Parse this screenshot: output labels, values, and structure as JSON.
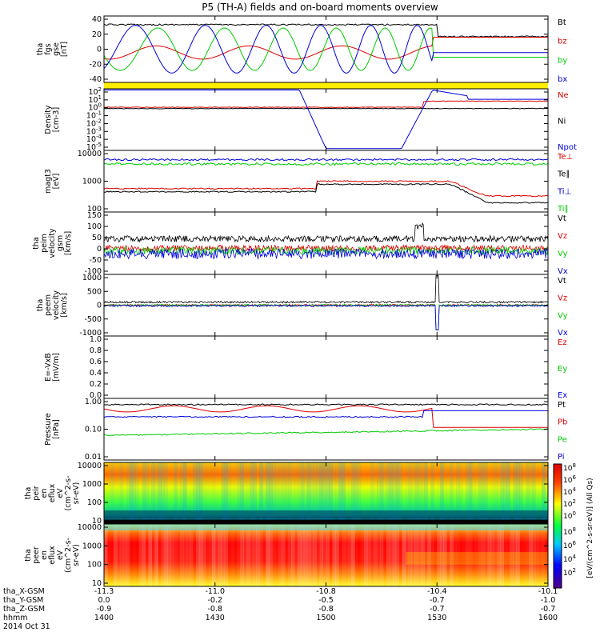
{
  "title": "P5 (TH-A) fields and on-board moments overview",
  "colors": {
    "black": "#000000",
    "red": "#dd0000",
    "green": "#00cc00",
    "blue": "#0000dd",
    "yellow": "#ffee00"
  },
  "chart_data": [
    {
      "id": "fgs",
      "type": "line",
      "ylabel": [
        "tha",
        "fgs",
        "gse",
        "[nT]"
      ],
      "yticks": [
        "40",
        "20",
        "0",
        "-20",
        "-40"
      ],
      "series": [
        {
          "name": "Bt",
          "color": "#000000"
        },
        {
          "name": "bz",
          "color": "#dd0000"
        },
        {
          "name": "by",
          "color": "#00cc00"
        },
        {
          "name": "bx",
          "color": "#0000dd"
        }
      ]
    },
    {
      "id": "density",
      "type": "line",
      "ylabel": [
        "Density",
        "[cm-3]"
      ],
      "yticks": [
        "10^2",
        "10^1",
        "10^0",
        "10^-1",
        "10^-2",
        "10^-3",
        "10^-4",
        "10^-5"
      ],
      "series": [
        {
          "name": "Ne",
          "color": "#dd0000"
        },
        {
          "name": "Ni",
          "color": "#000000"
        },
        {
          "name": "Npot",
          "color": "#0000dd"
        }
      ]
    },
    {
      "id": "temp",
      "type": "line",
      "ylabel": [
        "magt3",
        "[eV]"
      ],
      "yticks": [
        "10000",
        "1000",
        "100"
      ],
      "series": [
        {
          "name": "Te⊥",
          "color": "#dd0000"
        },
        {
          "name": "Te∥",
          "color": "#000000"
        },
        {
          "name": "Ti⊥",
          "color": "#0000dd"
        },
        {
          "name": "Ti∥",
          "color": "#00cc00"
        }
      ]
    },
    {
      "id": "peim",
      "type": "line",
      "ylabel": [
        "tha",
        "peim",
        "velocity",
        "gsm",
        "[km/s]"
      ],
      "yticks": [
        "150",
        "100",
        "50",
        "0",
        "-50",
        "-100"
      ],
      "series": [
        {
          "name": "Vt",
          "color": "#000000"
        },
        {
          "name": "Vz",
          "color": "#dd0000"
        },
        {
          "name": "Vy",
          "color": "#00cc00"
        },
        {
          "name": "Vx",
          "color": "#0000dd"
        }
      ]
    },
    {
      "id": "peem",
      "type": "line",
      "ylabel": [
        "tha",
        "peem",
        "velocity",
        "[km/s]"
      ],
      "yticks": [
        "1000",
        "500",
        "0",
        "-500",
        "-1000"
      ],
      "series": [
        {
          "name": "Vt",
          "color": "#000000"
        },
        {
          "name": "Vz",
          "color": "#dd0000"
        },
        {
          "name": "Vy",
          "color": "#00cc00"
        },
        {
          "name": "Vx",
          "color": "#0000dd"
        }
      ]
    },
    {
      "id": "efield",
      "type": "line",
      "ylabel": [
        "E=-VxB",
        "[mV/m]"
      ],
      "yticks": [
        "1.0",
        "0.8",
        "0.6",
        "0.4",
        "0.2",
        "0.0"
      ],
      "series": [
        {
          "name": "Ez",
          "color": "#dd0000"
        },
        {
          "name": "Ey",
          "color": "#00cc00"
        },
        {
          "name": "Ex",
          "color": "#0000dd"
        }
      ]
    },
    {
      "id": "pressure",
      "type": "line",
      "ylabel": [
        "Pressure",
        "[nPa]"
      ],
      "yticks": [
        "1.00",
        "0.10",
        "0.01"
      ],
      "series": [
        {
          "name": "Pt",
          "color": "#000000"
        },
        {
          "name": "Pb",
          "color": "#dd0000"
        },
        {
          "name": "Pe",
          "color": "#00cc00"
        },
        {
          "name": "Pi",
          "color": "#0000dd"
        }
      ]
    },
    {
      "id": "peir",
      "type": "heatmap",
      "ylabel": [
        "tha",
        "peir",
        "en",
        "eflux",
        "eV",
        "(cm^2-s-",
        "sr-eV)"
      ],
      "yticks": [
        "10000",
        "1000",
        "100",
        "10"
      ]
    },
    {
      "id": "peer",
      "type": "heatmap",
      "ylabel": [
        "tha",
        "peer",
        "en",
        "eflux",
        "eV",
        "(cm^2-s-",
        "sr-eV)"
      ],
      "yticks": [
        "10000",
        "1000",
        "100",
        "10"
      ]
    }
  ],
  "colorbar": {
    "label": "[eV/(cm^2-s-sr-eV)] (All Qs)",
    "ticks": [
      "10^8",
      "10^6",
      "10^4",
      "10^2",
      "10^0"
    ],
    "ticks2": [
      "10^8",
      "10^6",
      "10^4",
      "10^2"
    ]
  },
  "xaxis": {
    "rows": [
      {
        "label": "tha_X-GSM",
        "values": [
          "-11.3",
          "-11.0",
          "-10.8",
          "-10.4",
          "-10.1"
        ]
      },
      {
        "label": "tha_Y-GSM",
        "values": [
          "0.0",
          "-0.2",
          "-0.5",
          "-0.7",
          "-1.0"
        ]
      },
      {
        "label": "tha_Z-GSM",
        "values": [
          "-0.9",
          "-0.8",
          "-0.8",
          "-0.7",
          "-0.7"
        ]
      },
      {
        "label": "hhmm",
        "values": [
          "1400",
          "1430",
          "1500",
          "1530",
          "1600"
        ]
      }
    ],
    "date": "2014 Oct 31"
  }
}
